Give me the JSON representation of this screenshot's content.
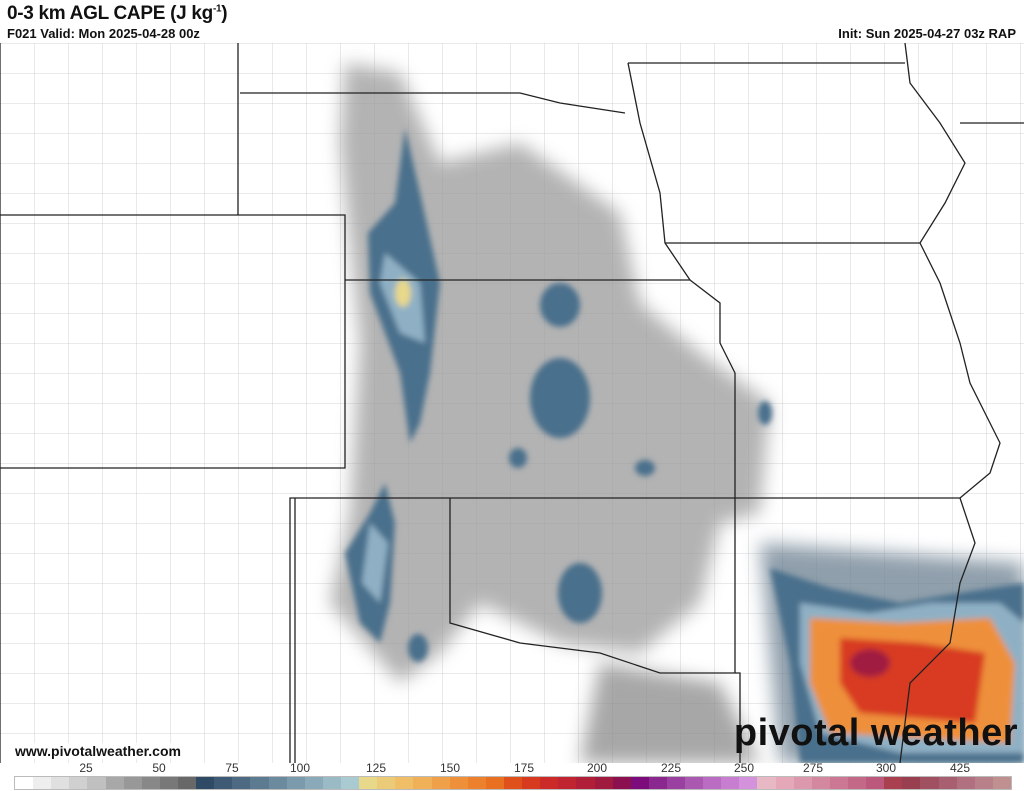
{
  "header": {
    "title": "0-3 km AGL CAPE (J kg",
    "title_sup": "-1",
    "title_end": ")",
    "valid": "F021 Valid: Mon 2025-04-28 00z",
    "init": "Init: Sun 2025-04-27 03z RAP"
  },
  "footer": {
    "website": "www.pivotalweather.com",
    "logo_text": "pivotal weather"
  },
  "colorbar": {
    "ticks": [
      "25",
      "50",
      "75",
      "100",
      "125",
      "150",
      "175",
      "200",
      "225",
      "250",
      "275",
      "300",
      "425"
    ],
    "colors": [
      "#ffffff",
      "#eeeeee",
      "#e0e0e0",
      "#d0d0d0",
      "#c0c0c0",
      "#a8a8a8",
      "#989898",
      "#888888",
      "#787878",
      "#686868",
      "#2f4a64",
      "#3e5a74",
      "#4d6a82",
      "#5c7a90",
      "#6b8a9e",
      "#7b9aac",
      "#8aaab9",
      "#9abac6",
      "#aacad2",
      "#e8d88a",
      "#eccb78",
      "#efbe66",
      "#f0b058",
      "#f0a048",
      "#ee903a",
      "#ec802c",
      "#e87020",
      "#e0501a",
      "#d83a20",
      "#cc2a28",
      "#c02430",
      "#b01e38",
      "#a01a40",
      "#8c1050",
      "#7c0c7c",
      "#8a2890",
      "#9a40a0",
      "#aa58b0",
      "#ba6cc2",
      "#c87ed0",
      "#d492dc",
      "#e8b8c4",
      "#e4a8b8",
      "#dc98ac",
      "#d488a0",
      "#cc7894",
      "#c46888",
      "#bc587c",
      "#a84050",
      "#984050",
      "#a05060",
      "#a86070",
      "#b07080",
      "#b88088",
      "#c09090"
    ]
  },
  "map": {
    "state_line_color": "#222222",
    "county_line_color": "#bbbbbb",
    "high_cape_colors": {
      "blue": "#4a6f8c",
      "lightblue": "#8fb0c4",
      "yellow": "#e8d88a",
      "orange": "#ee903a",
      "red": "#d83a20",
      "magenta": "#a01a40"
    }
  }
}
